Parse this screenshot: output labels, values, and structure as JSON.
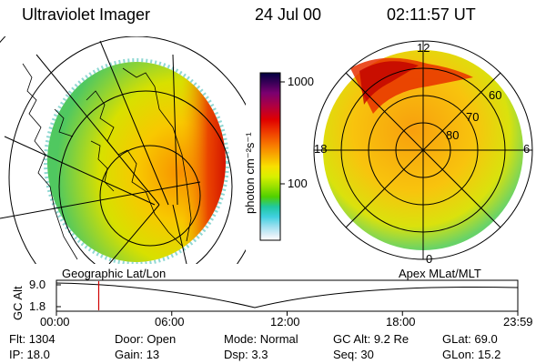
{
  "header": {
    "title": "Ultraviolet Imager",
    "date": "24 Jul 00",
    "time": "02:11:57 UT"
  },
  "left_panel": {
    "caption": "Geographic Lat/Lon"
  },
  "right_panel": {
    "caption": "Apex MLat/MLT",
    "mlt_labels": [
      "12",
      "18",
      "6",
      "0"
    ],
    "lat_labels": [
      "60",
      "70",
      "80"
    ]
  },
  "colorbar": {
    "label": "photon cm⁻²s⁻¹",
    "ticks": [
      "1000",
      "100"
    ],
    "colors": [
      "#000040",
      "#3a0058",
      "#7a0070",
      "#b00040",
      "#e00000",
      "#f04000",
      "#f88000",
      "#f8b000",
      "#f8e000",
      "#d8f000",
      "#98e000",
      "#50d000",
      "#20c8a0",
      "#40d0e0",
      "#a0e0f0",
      "#e0f0f8",
      "#ffffff"
    ]
  },
  "altitude_plot": {
    "ylabel": "GC Alt",
    "yticks": [
      "9.0",
      "1.8"
    ],
    "xticks": [
      "00:00",
      "06:00",
      "12:00",
      "18:00",
      "23:59"
    ],
    "marker_hour": 2.2
  },
  "info": {
    "row1": [
      {
        "label": "Flt:",
        "value": "1304"
      },
      {
        "label": "Door:",
        "value": "Open"
      },
      {
        "label": "Mode:",
        "value": "Normal"
      },
      {
        "label": "GC Alt:",
        "value": "9.2 Re"
      },
      {
        "label": "GLat:",
        "value": "69.0"
      }
    ],
    "row2": [
      {
        "label": "IP:",
        "value": "18.0"
      },
      {
        "label": "Gain:",
        "value": "13"
      },
      {
        "label": "Dsp:",
        "value": "3.3"
      },
      {
        "label": "Seq:",
        "value": "30"
      },
      {
        "label": "GLon:",
        "value": "15.2"
      }
    ]
  },
  "colors": {
    "accent_red": "#d00000"
  }
}
